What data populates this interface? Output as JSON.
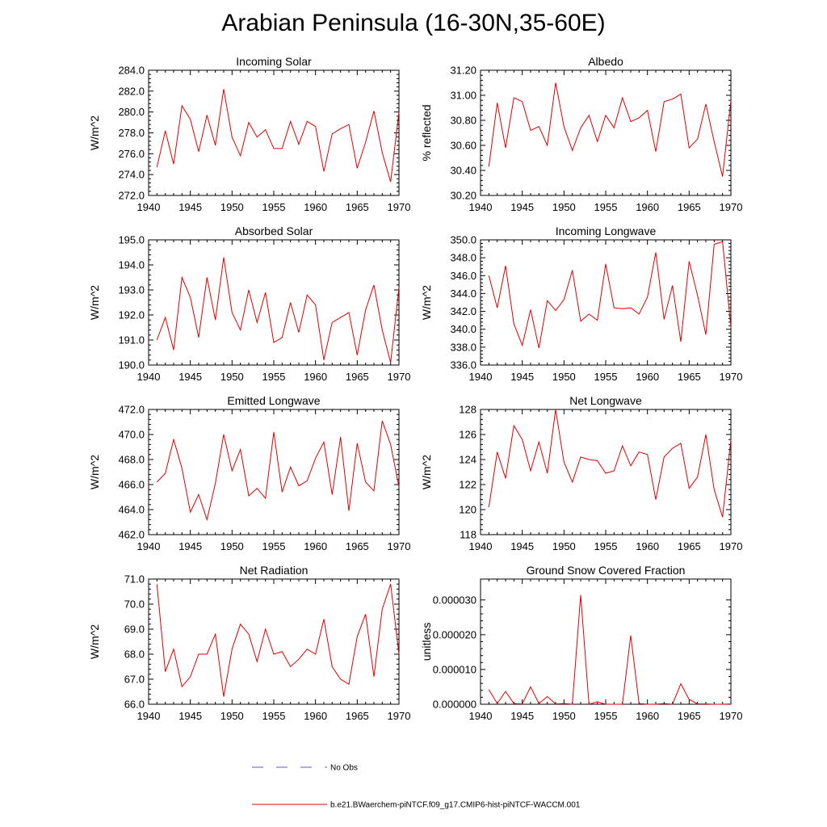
{
  "title": "Arabian Peninsula (16-30N,35-60E)",
  "legend": {
    "obs_label": "No Obs",
    "model_label": "b.e21.BWaerchem-piNTCF.f09_g17.CMIP6-hist-piNTCF-WACCM.001",
    "obs_color": "#5a5ad8",
    "model_color": "#e00000"
  },
  "chart_data": [
    {
      "type": "line",
      "title": "Incoming Solar",
      "ylabel": "W/m^2",
      "xlim": [
        1940,
        1970
      ],
      "ylim": [
        272.0,
        284.0
      ],
      "xticks": [
        "1940",
        "1945",
        "1950",
        "1955",
        "1960",
        "1965",
        "1970"
      ],
      "yticks": [
        "272.0",
        "274.0",
        "276.0",
        "278.0",
        "280.0",
        "282.0",
        "284.0"
      ],
      "x": [
        1941,
        1942,
        1943,
        1944,
        1945,
        1946,
        1947,
        1948,
        1949,
        1950,
        1951,
        1952,
        1953,
        1954,
        1955,
        1956,
        1957,
        1958,
        1959,
        1960,
        1961,
        1962,
        1963,
        1964,
        1965,
        1966,
        1967,
        1968,
        1969,
        1970
      ],
      "series": [
        {
          "values": [
            274.7,
            278.2,
            275.0,
            280.6,
            279.3,
            276.2,
            279.7,
            276.8,
            282.2,
            277.6,
            275.8,
            279.0,
            277.6,
            278.3,
            276.5,
            276.5,
            279.1,
            276.9,
            279.1,
            278.6,
            274.3,
            277.9,
            278.4,
            278.8,
            274.6,
            277.1,
            280.1,
            276.1,
            273.3,
            280.0
          ]
        }
      ]
    },
    {
      "type": "line",
      "title": "Albedo",
      "ylabel": "% reflected",
      "xlim": [
        1940,
        1970
      ],
      "ylim": [
        30.2,
        31.2
      ],
      "xticks": [
        "1940",
        "1945",
        "1950",
        "1955",
        "1960",
        "1965",
        "1970"
      ],
      "yticks": [
        "30.20",
        "30.40",
        "30.60",
        "30.80",
        "31.00",
        "31.20"
      ],
      "x": [
        1941,
        1942,
        1943,
        1944,
        1945,
        1946,
        1947,
        1948,
        1949,
        1950,
        1951,
        1952,
        1953,
        1954,
        1955,
        1956,
        1957,
        1958,
        1959,
        1960,
        1961,
        1962,
        1963,
        1964,
        1965,
        1966,
        1967,
        1968,
        1969,
        1970
      ],
      "series": [
        {
          "values": [
            30.43,
            30.94,
            30.58,
            30.98,
            30.95,
            30.72,
            30.75,
            30.6,
            31.1,
            30.75,
            30.56,
            30.74,
            30.84,
            30.63,
            30.84,
            30.74,
            30.98,
            30.79,
            30.82,
            30.88,
            30.55,
            30.95,
            30.97,
            31.01,
            30.58,
            30.65,
            30.93,
            30.63,
            30.35,
            30.96
          ]
        }
      ]
    },
    {
      "type": "line",
      "title": "Absorbed Solar",
      "ylabel": "W/m^2",
      "xlim": [
        1940,
        1970
      ],
      "ylim": [
        190.0,
        195.0
      ],
      "xticks": [
        "1940",
        "1945",
        "1950",
        "1955",
        "1960",
        "1965",
        "1970"
      ],
      "yticks": [
        "190.0",
        "191.0",
        "192.0",
        "193.0",
        "194.0",
        "195.0"
      ],
      "x": [
        1941,
        1942,
        1943,
        1944,
        1945,
        1946,
        1947,
        1948,
        1949,
        1950,
        1951,
        1952,
        1953,
        1954,
        1955,
        1956,
        1957,
        1958,
        1959,
        1960,
        1961,
        1962,
        1963,
        1964,
        1965,
        1966,
        1967,
        1968,
        1969,
        1970
      ],
      "series": [
        {
          "values": [
            191.0,
            191.9,
            190.6,
            193.5,
            192.7,
            191.1,
            193.5,
            191.8,
            194.3,
            192.1,
            191.4,
            193.0,
            191.7,
            192.9,
            190.9,
            191.1,
            192.5,
            191.3,
            192.8,
            192.4,
            190.2,
            191.7,
            191.9,
            192.1,
            190.4,
            192.2,
            193.2,
            191.4,
            190.1,
            193.1
          ]
        }
      ]
    },
    {
      "type": "line",
      "title": "Incoming Longwave",
      "ylabel": "W/m^2",
      "xlim": [
        1940,
        1970
      ],
      "ylim": [
        336.0,
        350.0
      ],
      "xticks": [
        "1940",
        "1945",
        "1950",
        "1955",
        "1960",
        "1965",
        "1970"
      ],
      "yticks": [
        "336.0",
        "338.0",
        "340.0",
        "342.0",
        "344.0",
        "346.0",
        "348.0",
        "350.0"
      ],
      "x": [
        1941,
        1942,
        1943,
        1944,
        1945,
        1946,
        1947,
        1948,
        1949,
        1950,
        1951,
        1952,
        1953,
        1954,
        1955,
        1956,
        1957,
        1958,
        1959,
        1960,
        1961,
        1962,
        1963,
        1964,
        1965,
        1966,
        1967,
        1968,
        1969,
        1970
      ],
      "series": [
        {
          "values": [
            346.0,
            342.4,
            347.1,
            340.6,
            338.2,
            342.2,
            337.9,
            343.2,
            342.1,
            343.3,
            346.6,
            340.9,
            341.7,
            341.0,
            347.3,
            342.4,
            342.3,
            342.4,
            341.7,
            343.6,
            348.6,
            341.1,
            344.9,
            338.6,
            347.6,
            343.8,
            339.4,
            349.5,
            349.8,
            340.2
          ]
        }
      ]
    },
    {
      "type": "line",
      "title": "Emitted Longwave",
      "ylabel": "W/m^2",
      "xlim": [
        1940,
        1970
      ],
      "ylim": [
        462.0,
        472.0
      ],
      "xticks": [
        "1940",
        "1945",
        "1950",
        "1955",
        "1960",
        "1965",
        "1970"
      ],
      "yticks": [
        "462.0",
        "464.0",
        "466.0",
        "468.0",
        "470.0",
        "472.0"
      ],
      "x": [
        1941,
        1942,
        1943,
        1944,
        1945,
        1946,
        1947,
        1948,
        1949,
        1950,
        1951,
        1952,
        1953,
        1954,
        1955,
        1956,
        1957,
        1958,
        1959,
        1960,
        1961,
        1962,
        1963,
        1964,
        1965,
        1966,
        1967,
        1968,
        1969,
        1970
      ],
      "series": [
        {
          "values": [
            466.2,
            466.9,
            469.6,
            467.3,
            463.8,
            465.2,
            463.2,
            466.1,
            470.0,
            467.1,
            468.8,
            465.1,
            465.7,
            464.9,
            470.2,
            465.4,
            467.4,
            465.9,
            466.3,
            468.1,
            469.4,
            465.2,
            469.8,
            463.9,
            469.3,
            466.2,
            465.5,
            471.1,
            469.2,
            465.8
          ]
        }
      ]
    },
    {
      "type": "line",
      "title": "Net Longwave",
      "ylabel": "W/m^2",
      "xlim": [
        1940,
        1970
      ],
      "ylim": [
        118,
        128
      ],
      "xticks": [
        "1940",
        "1945",
        "1950",
        "1955",
        "1960",
        "1965",
        "1970"
      ],
      "yticks": [
        "118",
        "120",
        "122",
        "124",
        "126",
        "128"
      ],
      "x": [
        1941,
        1942,
        1943,
        1944,
        1945,
        1946,
        1947,
        1948,
        1949,
        1950,
        1951,
        1952,
        1953,
        1954,
        1955,
        1956,
        1957,
        1958,
        1959,
        1960,
        1961,
        1962,
        1963,
        1964,
        1965,
        1966,
        1967,
        1968,
        1969,
        1970
      ],
      "series": [
        {
          "values": [
            120.2,
            124.6,
            122.5,
            126.7,
            125.6,
            123.1,
            125.4,
            122.9,
            128.0,
            123.8,
            122.2,
            124.2,
            124.0,
            123.9,
            122.9,
            123.1,
            125.1,
            123.5,
            124.6,
            124.4,
            120.8,
            124.2,
            124.9,
            125.3,
            121.7,
            122.6,
            126.0,
            121.6,
            119.4,
            125.6
          ]
        }
      ]
    },
    {
      "type": "line",
      "title": "Net Radiation",
      "ylabel": "W/m^2",
      "xlim": [
        1940,
        1970
      ],
      "ylim": [
        66.0,
        71.0
      ],
      "xticks": [
        "1940",
        "1945",
        "1950",
        "1955",
        "1960",
        "1965",
        "1970"
      ],
      "yticks": [
        "66.0",
        "67.0",
        "68.0",
        "69.0",
        "70.0",
        "71.0"
      ],
      "x": [
        1941,
        1942,
        1943,
        1944,
        1945,
        1946,
        1947,
        1948,
        1949,
        1950,
        1951,
        1952,
        1953,
        1954,
        1955,
        1956,
        1957,
        1958,
        1959,
        1960,
        1961,
        1962,
        1963,
        1964,
        1965,
        1966,
        1967,
        1968,
        1969,
        1970
      ],
      "series": [
        {
          "values": [
            70.8,
            67.3,
            68.2,
            66.7,
            67.1,
            68.0,
            68.0,
            68.8,
            66.3,
            68.2,
            69.2,
            68.8,
            67.7,
            69.0,
            68.0,
            68.1,
            67.5,
            67.8,
            68.2,
            68.0,
            69.4,
            67.5,
            67.0,
            66.8,
            68.7,
            69.6,
            67.1,
            69.8,
            70.8,
            68.0
          ]
        }
      ]
    },
    {
      "type": "line",
      "title": "Ground Snow Covered Fraction",
      "ylabel": "unitless",
      "xlim": [
        1940,
        1970
      ],
      "ylim": [
        0,
        3.6e-05
      ],
      "xticks": [
        "1940",
        "1945",
        "1950",
        "1955",
        "1960",
        "1965",
        "1970"
      ],
      "yticks": [
        "0.000000",
        "0.000010",
        "0.000020",
        "0.000030"
      ],
      "ytick_values": [
        0,
        1e-05,
        2e-05,
        3e-05
      ],
      "x": [
        1941,
        1942,
        1943,
        1944,
        1945,
        1946,
        1947,
        1948,
        1949,
        1950,
        1951,
        1952,
        1953,
        1954,
        1955,
        1956,
        1957,
        1958,
        1959,
        1960,
        1961,
        1962,
        1963,
        1964,
        1965,
        1966,
        1967,
        1968,
        1969,
        1970
      ],
      "series": [
        {
          "values": [
            4.2e-06,
            2e-07,
            3.7e-06,
            2e-07,
            1e-07,
            5e-06,
            2e-07,
            2.2e-06,
            1e-07,
            2e-07,
            0.0,
            3.14e-05,
            0.0,
            7e-07,
            0.0,
            0.0,
            0.0,
            1.98e-05,
            2e-07,
            0.0,
            0.0,
            2e-07,
            0.0,
            5.9e-06,
            1.4e-06,
            1e-07,
            1e-07,
            0.0,
            0.0,
            1e-07
          ]
        }
      ]
    }
  ]
}
